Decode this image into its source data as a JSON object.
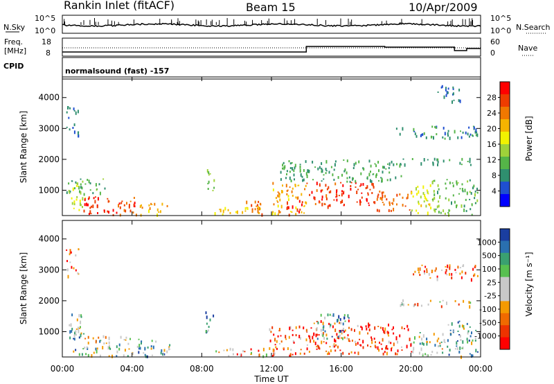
{
  "header": {
    "station_title": "Rankin Inlet (fitACF)",
    "beam_title": "Beam 15",
    "date_title": "10/Apr/2009"
  },
  "summary_panels": {
    "nsky_label": "N.Sky",
    "nsky_ticks": [
      "10^5",
      "10^0"
    ],
    "nsearch_label": "N.Search",
    "freq_label": "Freq.",
    "freq_unit": "[MHz]",
    "freq_ticks": [
      "18",
      "8"
    ],
    "nave_label": "Nave",
    "nave_ticks": [
      "60",
      "0"
    ],
    "cpid_label": "CPID",
    "cpid_text": "normalsound (fast) -157"
  },
  "colors": {
    "power_scale": [
      "#0000ff",
      "#1f4fd0",
      "#2f8f6f",
      "#55b548",
      "#9fd23a",
      "#f2f200",
      "#f5b400",
      "#f07800",
      "#ee3c00",
      "#ff0000"
    ],
    "velocity_scale": [
      "#ff0000",
      "#ee3300",
      "#f06a00",
      "#f49a00",
      "#c8c8c8",
      "#c8c8c8",
      "#58c050",
      "#3aa070",
      "#2a70b0",
      "#1a3ea0"
    ],
    "trace_color": "#000000"
  },
  "chart_data": [
    {
      "type": "heatmap",
      "title": "Power",
      "ylabel": "Slant Range [km]",
      "xlabel": "Time UT",
      "x_ticks": [
        "00:00",
        "04:00",
        "08:00",
        "12:00",
        "16:00",
        "20:00",
        "00:00"
      ],
      "y_ticks": [
        "1000",
        "2000",
        "3000",
        "4000"
      ],
      "xlim": [
        0,
        24
      ],
      "ylim": [
        180,
        4600
      ],
      "colorbar_label": "Power [dB]",
      "colorbar_ticks": [
        "4",
        "8",
        "12",
        "16",
        "20",
        "24",
        "28"
      ],
      "colorbar_range": [
        0,
        30
      ],
      "regions": [
        {
          "t0": 0.4,
          "t1": 1.3,
          "r0": 300,
          "r1": 1300,
          "v": 14
        },
        {
          "t0": 1.1,
          "t1": 2.4,
          "r0": 200,
          "r1": 900,
          "v": 27
        },
        {
          "t0": 2.4,
          "t1": 4.2,
          "r0": 200,
          "r1": 800,
          "v": 25
        },
        {
          "t0": 4.2,
          "t1": 6.0,
          "r0": 200,
          "r1": 600,
          "v": 20
        },
        {
          "t0": 0.2,
          "t1": 2.5,
          "r0": 900,
          "r1": 1400,
          "v": 10
        },
        {
          "t0": 8.1,
          "t1": 8.7,
          "r0": 1000,
          "r1": 1700,
          "v": 12
        },
        {
          "t0": 8.7,
          "t1": 11.5,
          "r0": 200,
          "r1": 500,
          "v": 18
        },
        {
          "t0": 10.4,
          "t1": 11.6,
          "r0": 200,
          "r1": 700,
          "v": 24
        },
        {
          "t0": 12.0,
          "t1": 14.0,
          "r0": 200,
          "r1": 1300,
          "v": 20
        },
        {
          "t0": 12.8,
          "t1": 13.8,
          "r0": 200,
          "r1": 700,
          "v": 27
        },
        {
          "t0": 14.0,
          "t1": 16.0,
          "r0": 500,
          "r1": 1300,
          "v": 26
        },
        {
          "t0": 16.0,
          "t1": 18.0,
          "r0": 500,
          "r1": 1300,
          "v": 27
        },
        {
          "t0": 18.0,
          "t1": 20.0,
          "r0": 300,
          "r1": 1000,
          "v": 24
        },
        {
          "t0": 20.0,
          "t1": 21.2,
          "r0": 200,
          "r1": 1200,
          "v": 16
        },
        {
          "t0": 21.2,
          "t1": 23.8,
          "r0": 200,
          "r1": 1400,
          "v": 11
        },
        {
          "t0": 12.5,
          "t1": 19.5,
          "r0": 1300,
          "r1": 2000,
          "v": 9
        },
        {
          "t0": 19.0,
          "t1": 23.5,
          "r0": 1850,
          "r1": 2050,
          "v": 9
        },
        {
          "t0": 19.0,
          "t1": 23.8,
          "r0": 2700,
          "r1": 3100,
          "v": 7
        },
        {
          "t0": 21.5,
          "t1": 22.8,
          "r0": 3900,
          "r1": 4500,
          "v": 6
        },
        {
          "t0": 0.2,
          "t1": 0.9,
          "r0": 2800,
          "r1": 3800,
          "v": 6
        }
      ]
    },
    {
      "type": "heatmap",
      "title": "Velocity",
      "ylabel": "Slant Range [km]",
      "xlabel": "Time UT",
      "x_ticks": [
        "00:00",
        "04:00",
        "08:00",
        "12:00",
        "16:00",
        "20:00",
        "00:00"
      ],
      "y_ticks": [
        "1000",
        "2000",
        "3000",
        "4000"
      ],
      "xlim": [
        0,
        24
      ],
      "ylim": [
        180,
        4600
      ],
      "colorbar_label": "Velocity [m s⁻¹]",
      "colorbar_ticks": [
        "1000",
        "500",
        "100",
        "25",
        "-25",
        "-100",
        "-500",
        "-1000"
      ],
      "regions": [
        {
          "t0": 0.3,
          "t1": 1.4,
          "r0": 300,
          "r1": 1600,
          "v": 2
        },
        {
          "t0": 1.2,
          "t1": 4.0,
          "r0": 200,
          "r1": 900,
          "v": 1
        },
        {
          "t0": 4.0,
          "t1": 6.2,
          "r0": 200,
          "r1": 800,
          "v": 2
        },
        {
          "t0": 8.1,
          "t1": 8.7,
          "r0": 1000,
          "r1": 1700,
          "v": 3
        },
        {
          "t0": 8.7,
          "t1": 11.8,
          "r0": 200,
          "r1": 500,
          "v": -1
        },
        {
          "t0": 11.8,
          "t1": 14.0,
          "r0": 200,
          "r1": 1200,
          "v": -3
        },
        {
          "t0": 14.0,
          "t1": 17.0,
          "r0": 300,
          "r1": 1400,
          "v": -3
        },
        {
          "t0": 14.5,
          "t1": 16.5,
          "r0": 800,
          "r1": 1600,
          "v": 3
        },
        {
          "t0": 17.0,
          "t1": 20.0,
          "r0": 300,
          "r1": 1300,
          "v": -3
        },
        {
          "t0": 20.0,
          "t1": 22.0,
          "r0": 200,
          "r1": 1000,
          "v": 1
        },
        {
          "t0": 22.0,
          "t1": 23.8,
          "r0": 200,
          "r1": 1400,
          "v": 2
        },
        {
          "t0": 19.0,
          "t1": 23.5,
          "r0": 1850,
          "r1": 2050,
          "v": 0
        },
        {
          "t0": 20.0,
          "t1": 23.8,
          "r0": 2700,
          "r1": 3200,
          "v": -2
        },
        {
          "t0": 0.2,
          "t1": 0.9,
          "r0": 2800,
          "r1": 3800,
          "v": -2
        }
      ]
    }
  ]
}
